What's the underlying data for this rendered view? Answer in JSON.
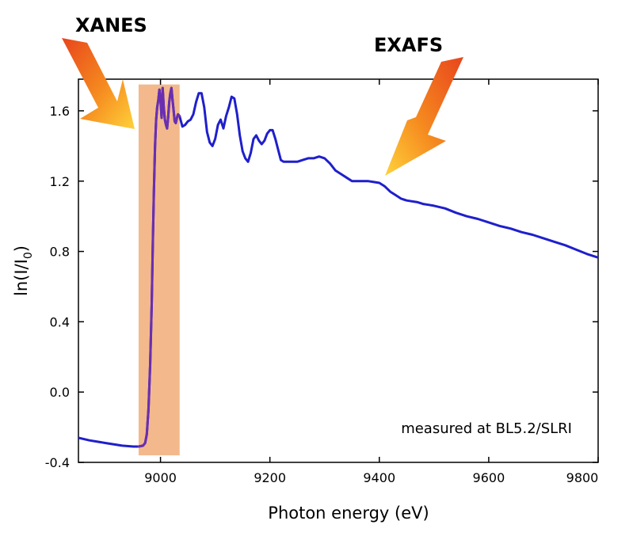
{
  "colors": {
    "line": "#1f1fcc",
    "line_in_band": "#6a2fb0",
    "band": "#f3b98c",
    "axis": "#000000",
    "arrow_dark": "#e8451c",
    "arrow_mid": "#f58a1f",
    "arrow_light": "#ffd23a"
  },
  "icons": [
    "arrow-xanes-icon",
    "arrow-exafs-icon"
  ],
  "chart_data": {
    "type": "line",
    "title": "",
    "xlabel": "Photon energy (eV)",
    "ylabel_main": "ln(I/I",
    "ylabel_sub": "0",
    "ylabel_close": ")",
    "xlim": [
      8850,
      9800
    ],
    "ylim": [
      -0.4,
      1.78
    ],
    "xticks": [
      9000,
      9200,
      9400,
      9600,
      9800
    ],
    "xtick_labels": [
      "9000",
      "9200",
      "9400",
      "9600",
      "9800"
    ],
    "yticks": [
      -0.4,
      0.0,
      0.4,
      0.8,
      1.2,
      1.6
    ],
    "ytick_labels": [
      "-0.4",
      "0.0",
      "0.4",
      "0.8",
      "1.2",
      "1.6"
    ],
    "grid": false,
    "legend": "none",
    "highlight_band": {
      "x": [
        8960,
        9035
      ],
      "y": [
        -0.36,
        1.75
      ]
    },
    "annotations": {
      "xanes": "XANES",
      "exafs": "EXAFS",
      "source": "measured at BL5.2/SLRI"
    },
    "series": [
      {
        "x": [
          8850,
          8870,
          8900,
          8930,
          8950,
          8960,
          8968,
          8972,
          8975,
          8978,
          8981,
          8984,
          8986,
          8988,
          8990,
          8992,
          8994,
          8996,
          8998,
          9000,
          9002,
          9004,
          9006,
          9008,
          9010,
          9012,
          9014,
          9016,
          9018,
          9020,
          9022,
          9024,
          9026,
          9028,
          9030,
          9032,
          9035,
          9040,
          9045,
          9050,
          9055,
          9060,
          9065,
          9070,
          9075,
          9080,
          9085,
          9090,
          9095,
          9100,
          9105,
          9110,
          9115,
          9120,
          9125,
          9130,
          9135,
          9140,
          9145,
          9150,
          9155,
          9160,
          9165,
          9170,
          9175,
          9180,
          9185,
          9190,
          9195,
          9200,
          9205,
          9210,
          9215,
          9220,
          9225,
          9230,
          9235,
          9240,
          9245,
          9250,
          9260,
          9270,
          9280,
          9290,
          9300,
          9310,
          9320,
          9330,
          9340,
          9350,
          9360,
          9370,
          9380,
          9390,
          9400,
          9410,
          9420,
          9430,
          9440,
          9450,
          9460,
          9470,
          9480,
          9490,
          9500,
          9520,
          9540,
          9560,
          9580,
          9600,
          9620,
          9640,
          9660,
          9680,
          9700,
          9720,
          9740,
          9760,
          9780,
          9800
        ],
        "y": [
          -0.26,
          -0.275,
          -0.29,
          -0.305,
          -0.31,
          -0.31,
          -0.305,
          -0.29,
          -0.24,
          -0.1,
          0.15,
          0.5,
          0.85,
          1.15,
          1.4,
          1.55,
          1.62,
          1.66,
          1.72,
          1.66,
          1.56,
          1.73,
          1.62,
          1.55,
          1.52,
          1.5,
          1.56,
          1.65,
          1.7,
          1.73,
          1.66,
          1.6,
          1.54,
          1.53,
          1.56,
          1.58,
          1.57,
          1.51,
          1.52,
          1.54,
          1.55,
          1.58,
          1.65,
          1.7,
          1.7,
          1.62,
          1.48,
          1.42,
          1.4,
          1.44,
          1.52,
          1.55,
          1.5,
          1.57,
          1.62,
          1.68,
          1.67,
          1.58,
          1.46,
          1.37,
          1.33,
          1.31,
          1.36,
          1.44,
          1.46,
          1.43,
          1.41,
          1.43,
          1.47,
          1.49,
          1.49,
          1.44,
          1.38,
          1.32,
          1.31,
          1.31,
          1.31,
          1.31,
          1.31,
          1.31,
          1.32,
          1.33,
          1.33,
          1.34,
          1.33,
          1.3,
          1.26,
          1.24,
          1.22,
          1.2,
          1.2,
          1.2,
          1.2,
          1.195,
          1.19,
          1.17,
          1.14,
          1.12,
          1.1,
          1.09,
          1.085,
          1.08,
          1.07,
          1.065,
          1.06,
          1.045,
          1.02,
          1.0,
          0.985,
          0.965,
          0.945,
          0.93,
          0.91,
          0.895,
          0.875,
          0.855,
          0.835,
          0.81,
          0.785,
          0.765
        ]
      }
    ]
  }
}
